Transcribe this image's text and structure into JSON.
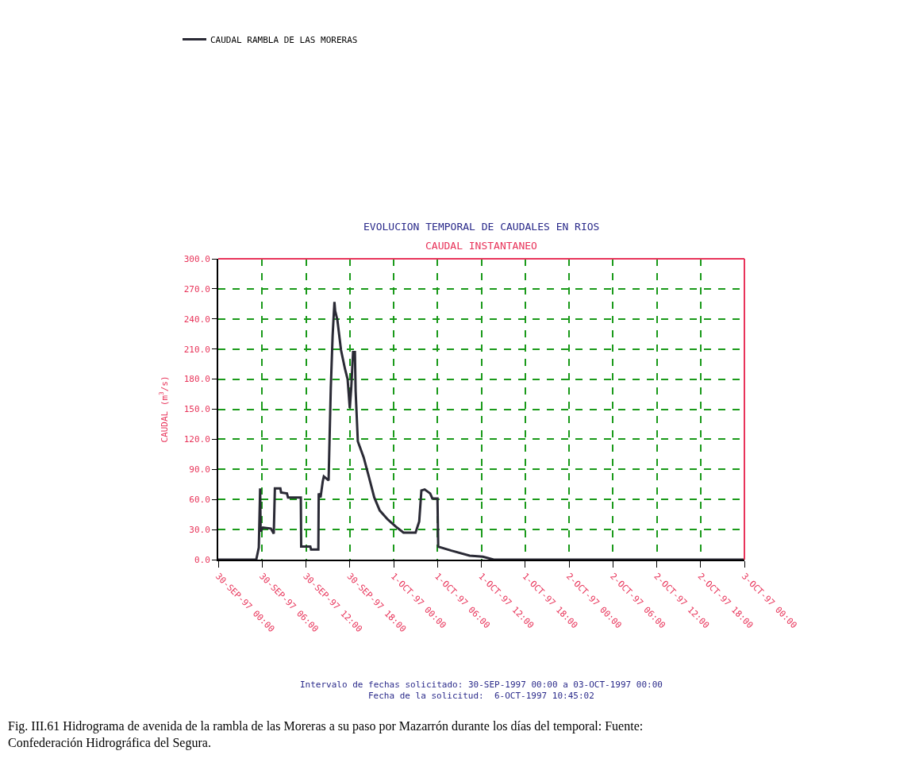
{
  "chart_data": {
    "type": "line",
    "title": "EVOLUCION TEMPORAL DE CAUDALES EN RIOS",
    "subtitle": "CAUDAL INSTANTANEO",
    "ylabel": "CAUDAL (m$^{3}$/s)",
    "series": [
      {
        "name": "CAUDAL RAMBLA DE LAS MORERAS",
        "color": "#2a2a35",
        "x": [
          "1997-09-30T00:00",
          "1997-09-30T05:12",
          "1997-09-30T05:33",
          "1997-09-30T05:44",
          "1997-09-30T05:48",
          "1997-09-30T06:06",
          "1997-09-30T07:12",
          "1997-09-30T07:36",
          "1997-09-30T07:45",
          "1997-09-30T08:30",
          "1997-09-30T08:36",
          "1997-09-30T09:24",
          "1997-09-30T09:33",
          "1997-09-30T11:18",
          "1997-09-30T11:21",
          "1997-09-30T12:36",
          "1997-09-30T12:42",
          "1997-09-30T13:42",
          "1997-09-30T13:45",
          "1997-09-30T14:00",
          "1997-09-30T14:18",
          "1997-09-30T14:27",
          "1997-09-30T15:06",
          "1997-09-30T15:12",
          "1997-09-30T15:24",
          "1997-09-30T15:39",
          "1997-09-30T15:54",
          "1997-09-30T16:00",
          "1997-09-30T16:18",
          "1997-09-30T16:48",
          "1997-09-30T17:21",
          "1997-09-30T17:42",
          "1997-09-30T18:00",
          "1997-09-30T18:12",
          "1997-09-30T18:27",
          "1997-09-30T18:42",
          "1997-09-30T18:48",
          "1997-09-30T19:06",
          "1997-09-30T19:54",
          "1997-09-30T20:36",
          "1997-09-30T21:21",
          "1997-09-30T22:06",
          "1997-09-30T23:12",
          "1997-10-01T00:18",
          "1997-10-01T01:21",
          "1997-10-01T03:00",
          "1997-10-01T03:30",
          "1997-10-01T03:48",
          "1997-10-01T04:15",
          "1997-10-01T05:00",
          "1997-10-01T05:18",
          "1997-10-01T06:00",
          "1997-10-01T06:06",
          "1997-10-01T07:54",
          "1997-10-01T10:24",
          "1997-10-01T12:12",
          "1997-10-01T13:42",
          "1997-10-03T00:00"
        ],
        "values": [
          0,
          0,
          12,
          71,
          28,
          32,
          31,
          26,
          71,
          71,
          67,
          66,
          62,
          62,
          13,
          13,
          10,
          10,
          66,
          62,
          78,
          83,
          79,
          110,
          171,
          223,
          257,
          248,
          239,
          209,
          190,
          180,
          151,
          171,
          207,
          207,
          168,
          118,
          102,
          83,
          62,
          49,
          40,
          33,
          27,
          27,
          38,
          69,
          70,
          66,
          61,
          61,
          13,
          9,
          4,
          3,
          0,
          0
        ]
      }
    ],
    "xlim": [
      "1997-09-30T00:00",
      "1997-10-03T00:00"
    ],
    "ylim": [
      0,
      300
    ],
    "xticks": [
      {
        "value": "1997-09-30T00:00",
        "label": "30-SEP-97 00:00"
      },
      {
        "value": "1997-09-30T06:00",
        "label": "30-SEP-97 06:00"
      },
      {
        "value": "1997-09-30T12:00",
        "label": "30-SEP-97 12:00"
      },
      {
        "value": "1997-09-30T18:00",
        "label": "30-SEP-97 18:00"
      },
      {
        "value": "1997-10-01T00:00",
        "label": "1-OCT-97 00:00"
      },
      {
        "value": "1997-10-01T06:00",
        "label": "1-OCT-97 06:00"
      },
      {
        "value": "1997-10-01T12:00",
        "label": "1-OCT-97 12:00"
      },
      {
        "value": "1997-10-01T18:00",
        "label": "1-OCT-97 18:00"
      },
      {
        "value": "1997-10-02T00:00",
        "label": "2-OCT-97 00:00"
      },
      {
        "value": "1997-10-02T06:00",
        "label": "2-OCT-97 06:00"
      },
      {
        "value": "1997-10-02T12:00",
        "label": "2-OCT-97 12:00"
      },
      {
        "value": "1997-10-02T18:00",
        "label": "2-OCT-97 18:00"
      },
      {
        "value": "1997-10-03T00:00",
        "label": "3-OCT-97 00:00"
      }
    ],
    "yticks": [
      {
        "value": 0,
        "label": "0.0"
      },
      {
        "value": 30,
        "label": "30.0"
      },
      {
        "value": 60,
        "label": "60.0"
      },
      {
        "value": 90,
        "label": "90.0"
      },
      {
        "value": 120,
        "label": "120.0"
      },
      {
        "value": 150,
        "label": "150.0"
      },
      {
        "value": 180,
        "label": "180.0"
      },
      {
        "value": 210,
        "label": "210.0"
      },
      {
        "value": 240,
        "label": "240.0"
      },
      {
        "value": 270,
        "label": "270.0"
      },
      {
        "value": 300,
        "label": "300.0"
      }
    ],
    "grid": true,
    "legend": "top left",
    "line_style": "solid",
    "annotations": [
      "Intervalo de fechas solicitado: 30-SEP-1997 00:00 a 03-OCT-1997 00:00",
      "Fecha de la solicitud:  6-OCT-1997 10:45:02",
      "Fig. III.61 Hidrograma de avenida de la rambla de las Moreras a su paso por Mazarrón durante los días del temporal: Fuente: Confederación Hidrográfica del Segura."
    ]
  }
}
